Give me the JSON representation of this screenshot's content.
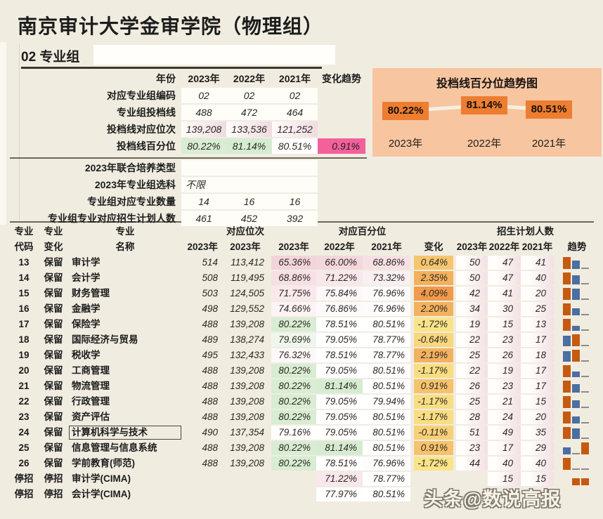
{
  "page": {
    "title": "南京审计大学金审学院（物理组）",
    "subtitle": "02 专业组",
    "watermark": "头条@数说高报"
  },
  "colors": {
    "accent_orange": "#ED7D31",
    "panel_salmon": "#F7C5A0",
    "pink_highlight": "#F2619C",
    "spark_orange": "#C55A11",
    "spark_blue": "#4A6FA0",
    "spark_gray": "#8C8C8C",
    "background_cream": "#F1ECE0"
  },
  "summary": {
    "header": {
      "label": "年份",
      "years": [
        "2023年",
        "2022年",
        "2021年"
      ],
      "trend": "变化趋势"
    },
    "rows": [
      {
        "label": "对应专业组编码",
        "values": [
          "02",
          "02",
          "02"
        ],
        "trend": "",
        "style": "plain"
      },
      {
        "label": "专业组投档线",
        "values": [
          "488",
          "472",
          "464"
        ],
        "trend": "",
        "style": "plain"
      },
      {
        "label": "投档线对应位次",
        "values": [
          "139,208",
          "133,536",
          "121,252"
        ],
        "trend": "",
        "style": "rank"
      },
      {
        "label": "投档线百分位",
        "values": [
          "80.22%",
          "81.14%",
          "80.51%"
        ],
        "trend": "0.91%",
        "style": "pct"
      }
    ],
    "rows_extra": [
      {
        "label": "2023年联合培养类型",
        "wide": "",
        "values": null
      },
      {
        "label": "2023年专业组选科",
        "wide": "不限",
        "values": null
      },
      {
        "label": "专业组对应专业数量",
        "wide": null,
        "values": [
          "14",
          "16",
          "16"
        ]
      },
      {
        "label": "专业组专业对应招生计划人数",
        "wide": null,
        "values": [
          "461",
          "452",
          "392"
        ]
      }
    ]
  },
  "chart_data": {
    "type": "line",
    "title": "投档线百分位趋势图",
    "categories": [
      "2023年",
      "2022年",
      "2021年"
    ],
    "values": [
      80.22,
      81.14,
      80.51
    ],
    "labels": [
      "80.22%",
      "81.14%",
      "80.51%"
    ],
    "ylim": [
      79.5,
      81.5
    ],
    "legend": false,
    "marker_style": "orange-box-labels connected by light line on salmon panel"
  },
  "table": {
    "groups": {
      "rank": "对应位次",
      "pct": "对应百分位",
      "plan": "招生计划人数"
    },
    "header": {
      "code": [
        "专业",
        "代码"
      ],
      "change": [
        "专业",
        "变化"
      ],
      "name": [
        "专业",
        "名称"
      ],
      "score_year": "2023年",
      "rank_year": "2023年",
      "pct_years": [
        "2023年",
        "2022年",
        "2021年"
      ],
      "pct_change": "变化",
      "plan_years": [
        "2023年",
        "2022年",
        "2021年"
      ],
      "trend": "趋势"
    },
    "rows": [
      {
        "code": "13",
        "change": "保留",
        "name": "审计学",
        "score": "514",
        "rank": "113,412",
        "pct": [
          "65.36%",
          "66.00%",
          "68.86%"
        ],
        "pct_change": "0.64%",
        "plan": [
          "50",
          "47",
          "41"
        ]
      },
      {
        "code": "14",
        "change": "保留",
        "name": "会计学",
        "score": "508",
        "rank": "119,495",
        "pct": [
          "68.86%",
          "71.22%",
          "73.32%"
        ],
        "pct_change": "2.35%",
        "plan": [
          "50",
          "47",
          "40"
        ]
      },
      {
        "code": "15",
        "change": "保留",
        "name": "财务管理",
        "score": "503",
        "rank": "124,505",
        "pct": [
          "71.75%",
          "75.84%",
          "76.96%"
        ],
        "pct_change": "4.09%",
        "plan": [
          "42",
          "41",
          "20"
        ]
      },
      {
        "code": "16",
        "change": "保留",
        "name": "金融学",
        "score": "498",
        "rank": "129,552",
        "pct": [
          "74.66%",
          "76.86%",
          "76.96%"
        ],
        "pct_change": "2.20%",
        "plan": [
          "34",
          "30",
          "25"
        ]
      },
      {
        "code": "17",
        "change": "保留",
        "name": "保险学",
        "score": "488",
        "rank": "139,208",
        "pct": [
          "80.22%",
          "78.51%",
          "80.51%"
        ],
        "pct_change": "-1.72%",
        "plan": [
          "19",
          "15",
          "13"
        ]
      },
      {
        "code": "18",
        "change": "保留",
        "name": "国际经济与贸易",
        "score": "489",
        "rank": "138,274",
        "pct": [
          "79.69%",
          "79.05%",
          "78.77%"
        ],
        "pct_change": "-0.64%",
        "plan": [
          "22",
          "23",
          "17"
        ]
      },
      {
        "code": "19",
        "change": "保留",
        "name": "税收学",
        "score": "495",
        "rank": "132,433",
        "pct": [
          "76.32%",
          "78.51%",
          "78.77%"
        ],
        "pct_change": "2.19%",
        "plan": [
          "25",
          "26",
          "18"
        ]
      },
      {
        "code": "20",
        "change": "保留",
        "name": "工商管理",
        "score": "488",
        "rank": "139,208",
        "pct": [
          "80.22%",
          "79.05%",
          "80.51%"
        ],
        "pct_change": "-1.17%",
        "plan": [
          "22",
          "19",
          "17"
        ]
      },
      {
        "code": "21",
        "change": "保留",
        "name": "物流管理",
        "score": "488",
        "rank": "139,208",
        "pct": [
          "80.22%",
          "81.14%",
          "80.51%"
        ],
        "pct_change": "0.91%",
        "plan": [
          "26",
          "23",
          "17"
        ]
      },
      {
        "code": "22",
        "change": "保留",
        "name": "行政管理",
        "score": "488",
        "rank": "139,208",
        "pct": [
          "80.22%",
          "79.05%",
          "79.94%"
        ],
        "pct_change": "-1.17%",
        "plan": [
          "25",
          "21",
          "15"
        ]
      },
      {
        "code": "23",
        "change": "保留",
        "name": "资产评估",
        "score": "488",
        "rank": "139,208",
        "pct": [
          "80.22%",
          "79.05%",
          "80.51%"
        ],
        "pct_change": "-1.17%",
        "plan": [
          "28",
          "24",
          "20"
        ]
      },
      {
        "code": "24",
        "change": "保留",
        "name": "计算机科学与技术",
        "boxed": true,
        "score": "490",
        "rank": "137,354",
        "pct": [
          "79.16%",
          "79.05%",
          "80.51%"
        ],
        "pct_change": "-0.11%",
        "plan": [
          "51",
          "49",
          "35"
        ]
      },
      {
        "code": "25",
        "change": "保留",
        "name": "信息管理与信息系统",
        "score": "488",
        "rank": "139,208",
        "pct": [
          "80.22%",
          "81.14%",
          "80.51%"
        ],
        "pct_change": "0.91%",
        "plan": [
          "23",
          "17",
          "29"
        ]
      },
      {
        "code": "26",
        "change": "保留",
        "name": "学前教育(师范)",
        "score": "488",
        "rank": "139,208",
        "pct": [
          "80.22%",
          "78.51%",
          "76.96%"
        ],
        "pct_change": "-1.72%",
        "plan": [
          "44",
          "40",
          "40"
        ]
      },
      {
        "code": "停招",
        "change": "停招",
        "name": "审计学(CIMA)",
        "score": "",
        "rank": "",
        "pct": [
          "",
          "71.22%",
          "78.77%"
        ],
        "pct_change": "",
        "plan": [
          "",
          "15",
          "15"
        ]
      },
      {
        "code": "停招",
        "change": "停招",
        "name": "会计学(CIMA)",
        "score": "",
        "rank": "",
        "pct": [
          "",
          "77.97%",
          "80.51%"
        ],
        "pct_change": "",
        "plan": [
          "",
          "",
          ""
        ]
      }
    ]
  }
}
